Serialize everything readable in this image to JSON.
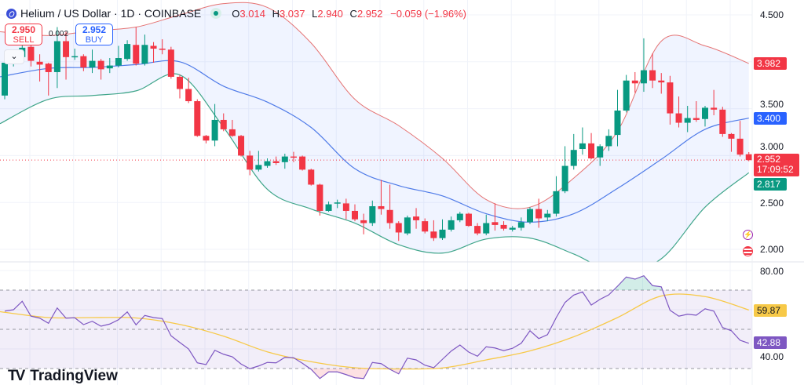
{
  "header": {
    "symbol_title": "Helium / US Dollar · 1D · COINBASE",
    "ohlc": {
      "o_label": "O",
      "o": "3.014",
      "h_label": "H",
      "h": "3.037",
      "l_label": "L",
      "l": "2.940",
      "c_label": "C",
      "c": "2.952",
      "change": "−0.059 (−1.96%)"
    }
  },
  "trade": {
    "sell_price": "2.950",
    "sell_label": "SELL",
    "spread": "0.002",
    "buy_price": "2.952",
    "buy_label": "BUY",
    "dropdown_icon": "chevron-down-icon"
  },
  "price_axis": {
    "ticks": [
      "4.500",
      "3.500",
      "3.000",
      "2.500",
      "2.000"
    ],
    "upper_band_label": "3.982",
    "basis_label": "3.400",
    "last_price": "2.952",
    "countdown": "17:09:52",
    "lower_band_label": "2.817"
  },
  "rsi_axis": {
    "ticks": [
      "80.00",
      "40.00"
    ],
    "rsi_ma_label": "59.87",
    "rsi_label": "42.88"
  },
  "icons": {
    "events": "lightning-icon",
    "economic": "us-flag-icon"
  },
  "branding": {
    "name": "TradingView"
  },
  "colors": {
    "up": "#089981",
    "down": "#f23645",
    "basis": "#2962ff",
    "upper": "#f23645",
    "lower": "#089981",
    "band_fill": "#2962ff",
    "rsi": "#7e57c2",
    "rsi_ma": "#f7c948"
  },
  "chart_data": [
    {
      "type": "candlestick",
      "title": "Helium / US Dollar · 1D · COINBASE",
      "ylim": [
        1.87,
        4.65
      ],
      "yticks": [
        2.0,
        2.5,
        3.0,
        3.5,
        4.0,
        4.5
      ],
      "grid": true,
      "last_price": 2.952,
      "candles_ohlc": [
        [
          3.64,
          4.0,
          3.6,
          3.99
        ],
        [
          3.99,
          4.12,
          3.95,
          4.08
        ],
        [
          4.05,
          4.2,
          4.0,
          4.15
        ],
        [
          4.16,
          4.2,
          3.95,
          4.01
        ],
        [
          4.0,
          4.08,
          3.79,
          3.97
        ],
        [
          3.98,
          3.99,
          3.64,
          3.89
        ],
        [
          3.89,
          4.37,
          3.72,
          4.22
        ],
        [
          4.22,
          4.32,
          3.81,
          4.05
        ],
        [
          4.05,
          4.14,
          4.02,
          4.06
        ],
        [
          4.06,
          4.08,
          3.9,
          3.94
        ],
        [
          3.94,
          4.13,
          3.88,
          4.01
        ],
        [
          4.01,
          4.03,
          3.81,
          3.92
        ],
        [
          3.93,
          4.04,
          3.88,
          3.96
        ],
        [
          3.96,
          4.17,
          3.94,
          4.04
        ],
        [
          4.03,
          4.23,
          4.01,
          4.19
        ],
        [
          4.18,
          4.37,
          3.96,
          3.98
        ],
        [
          3.98,
          4.29,
          3.96,
          4.18
        ],
        [
          4.17,
          4.21,
          3.99,
          4.14
        ],
        [
          4.14,
          4.24,
          4.08,
          4.13
        ],
        [
          4.13,
          4.16,
          3.82,
          3.84
        ],
        [
          3.84,
          3.86,
          3.61,
          3.71
        ],
        [
          3.71,
          3.83,
          3.56,
          3.58
        ],
        [
          3.58,
          3.6,
          3.2,
          3.21
        ],
        [
          3.21,
          3.22,
          3.13,
          3.16
        ],
        [
          3.16,
          3.55,
          3.1,
          3.38
        ],
        [
          3.38,
          3.45,
          3.26,
          3.28
        ],
        [
          3.28,
          3.38,
          3.2,
          3.21
        ],
        [
          3.21,
          3.22,
          2.99,
          3.0
        ],
        [
          3.0,
          3.05,
          2.79,
          2.85
        ],
        [
          2.85,
          3.05,
          2.83,
          2.9
        ],
        [
          2.89,
          2.97,
          2.87,
          2.94
        ],
        [
          2.94,
          2.99,
          2.9,
          2.92
        ],
        [
          2.93,
          3.02,
          2.86,
          2.99
        ],
        [
          2.99,
          3.04,
          2.93,
          2.98
        ],
        [
          2.99,
          3.0,
          2.84,
          2.85
        ],
        [
          2.85,
          2.86,
          2.68,
          2.69
        ],
        [
          2.69,
          2.7,
          2.36,
          2.41
        ],
        [
          2.41,
          2.51,
          2.4,
          2.48
        ],
        [
          2.49,
          2.53,
          2.44,
          2.5
        ],
        [
          2.49,
          2.54,
          2.32,
          2.41
        ],
        [
          2.41,
          2.48,
          2.3,
          2.32
        ],
        [
          2.31,
          2.38,
          2.16,
          2.28
        ],
        [
          2.28,
          2.52,
          2.25,
          2.46
        ],
        [
          2.46,
          2.74,
          2.37,
          2.43
        ],
        [
          2.42,
          2.69,
          2.22,
          2.28
        ],
        [
          2.28,
          2.3,
          2.09,
          2.18
        ],
        [
          2.17,
          2.36,
          2.15,
          2.34
        ],
        [
          2.35,
          2.44,
          2.22,
          2.31
        ],
        [
          2.3,
          2.33,
          2.17,
          2.19
        ],
        [
          2.19,
          2.31,
          2.09,
          2.12
        ],
        [
          2.12,
          2.32,
          2.1,
          2.21
        ],
        [
          2.21,
          2.35,
          2.19,
          2.31
        ],
        [
          2.31,
          2.4,
          2.29,
          2.38
        ],
        [
          2.38,
          2.39,
          2.24,
          2.25
        ],
        [
          2.25,
          2.28,
          2.15,
          2.17
        ],
        [
          2.17,
          2.37,
          2.15,
          2.28
        ],
        [
          2.29,
          2.49,
          2.2,
          2.26
        ],
        [
          2.26,
          2.3,
          2.2,
          2.22
        ],
        [
          2.21,
          2.25,
          2.19,
          2.23
        ],
        [
          2.23,
          2.34,
          2.2,
          2.29
        ],
        [
          2.29,
          2.45,
          2.27,
          2.43
        ],
        [
          2.43,
          2.54,
          2.23,
          2.33
        ],
        [
          2.34,
          2.42,
          2.3,
          2.38
        ],
        [
          2.38,
          2.78,
          2.35,
          2.62
        ],
        [
          2.62,
          3.1,
          2.6,
          2.89
        ],
        [
          2.89,
          3.23,
          2.85,
          3.06
        ],
        [
          3.07,
          3.3,
          3.01,
          3.13
        ],
        [
          3.13,
          3.24,
          2.96,
          2.97
        ],
        [
          2.98,
          3.12,
          2.89,
          3.1
        ],
        [
          3.1,
          3.28,
          3.05,
          3.21
        ],
        [
          3.22,
          3.7,
          3.1,
          3.48
        ],
        [
          3.48,
          3.86,
          3.46,
          3.8
        ],
        [
          3.8,
          3.89,
          3.67,
          3.77
        ],
        [
          3.77,
          4.25,
          3.68,
          3.91
        ],
        [
          3.91,
          4.09,
          3.72,
          3.8
        ],
        [
          3.8,
          3.88,
          3.66,
          3.78
        ],
        [
          3.78,
          3.85,
          3.33,
          3.45
        ],
        [
          3.45,
          3.63,
          3.3,
          3.35
        ],
        [
          3.35,
          3.53,
          3.25,
          3.4
        ],
        [
          3.4,
          3.58,
          3.36,
          3.38
        ],
        [
          3.39,
          3.53,
          3.31,
          3.51
        ],
        [
          3.51,
          3.7,
          3.43,
          3.49
        ],
        [
          3.49,
          3.52,
          3.2,
          3.23
        ],
        [
          3.23,
          3.24,
          3.04,
          3.18
        ],
        [
          3.18,
          3.37,
          2.99,
          3.01
        ],
        [
          3.014,
          3.037,
          2.94,
          2.952
        ]
      ],
      "bollinger": {
        "bars": [
          0,
          5,
          10,
          15,
          20,
          25,
          30,
          35,
          40,
          45,
          50,
          55,
          60,
          65,
          70,
          75,
          80,
          85
        ],
        "upper": [
          4.32,
          4.28,
          4.33,
          4.37,
          4.5,
          4.62,
          4.58,
          4.2,
          3.6,
          3.32,
          2.97,
          2.53,
          2.45,
          2.76,
          3.26,
          4.22,
          4.17,
          3.982
        ],
        "basis": [
          3.84,
          3.93,
          3.94,
          3.97,
          4.0,
          3.74,
          3.57,
          3.3,
          2.86,
          2.68,
          2.57,
          2.38,
          2.29,
          2.38,
          2.65,
          2.96,
          3.28,
          3.4
        ],
        "lower": [
          3.34,
          3.6,
          3.64,
          3.69,
          3.86,
          3.3,
          2.64,
          2.43,
          2.28,
          2.05,
          1.96,
          2.11,
          2.12,
          1.95,
          1.75,
          1.9,
          2.45,
          2.817
        ]
      }
    },
    {
      "type": "line",
      "ylim": [
        17,
        84
      ],
      "levels": [
        70,
        50,
        30
      ],
      "rsi": [
        59.3,
        60,
        64.3,
        56.7,
        55.7,
        53.1,
        60.9,
        55.7,
        55.9,
        52.4,
        54.1,
        51.6,
        52.7,
        54.9,
        58.9,
        52.3,
        57.1,
        56,
        55.5,
        46.7,
        43.3,
        40,
        32.9,
        32,
        39.3,
        37.3,
        36,
        32.3,
        29.9,
        31.3,
        33.1,
        32.9,
        35.7,
        35.5,
        32.7,
        29.6,
        24.9,
        28.3,
        28.3,
        26.9,
        25.3,
        24.9,
        33.1,
        32.5,
        29.6,
        27.3,
        35.3,
        34.4,
        31.7,
        30.4,
        34.7,
        38.9,
        42,
        38.4,
        36.3,
        41.1,
        40.5,
        39.1,
        40.3,
        42.9,
        49.3,
        45.3,
        47.3,
        56,
        63.7,
        67.5,
        69.1,
        62.4,
        65.3,
        67.6,
        72,
        76.7,
        75.6,
        77.3,
        72.3,
        71.7,
        59.7,
        56.7,
        57.7,
        57.2,
        60.5,
        59.3,
        50.9,
        49.3,
        44.4,
        42.88
      ],
      "rsi_ma": {
        "bars": [
          0,
          5,
          10,
          15,
          20,
          25,
          30,
          35,
          40,
          45,
          50,
          55,
          60,
          65,
          70,
          75,
          80,
          85
        ],
        "values": [
          59,
          56,
          56,
          55.8,
          52.5,
          46.5,
          38.5,
          33.5,
          30.4,
          29.8,
          30.3,
          34.4,
          39,
          46.2,
          56,
          67,
          66.7,
          59.87
        ]
      }
    }
  ]
}
